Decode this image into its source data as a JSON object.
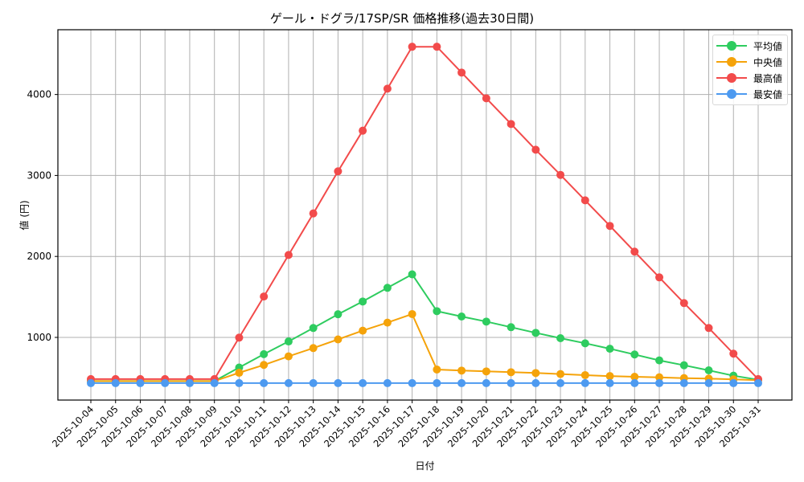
{
  "chart_data": {
    "type": "line",
    "title": "ゲール・ドグラ/17SP/SR 価格推移(過去30日間)",
    "xlabel": "日付",
    "ylabel": "値 (円)",
    "ylim": [
      226,
      4800
    ],
    "yticks": [
      1000,
      2000,
      3000,
      4000
    ],
    "grid": true,
    "legend_position": "upper right",
    "categories": [
      "2025-10-04",
      "2025-10-05",
      "2025-10-06",
      "2025-10-07",
      "2025-10-08",
      "2025-10-09",
      "2025-10-10",
      "2025-10-11",
      "2025-10-12",
      "2025-10-13",
      "2025-10-14",
      "2025-10-15",
      "2025-10-16",
      "2025-10-17",
      "2025-10-18",
      "2025-10-19",
      "2025-10-20",
      "2025-10-21",
      "2025-10-22",
      "2025-10-23",
      "2025-10-24",
      "2025-10-25",
      "2025-10-26",
      "2025-10-27",
      "2025-10-28",
      "2025-10-29",
      "2025-10-30",
      "2025-10-31"
    ],
    "series": [
      {
        "name": "平均値",
        "color": "#2ecc5f",
        "values": [
          460,
          460,
          460,
          460,
          460,
          460,
          628,
          793,
          950,
          1116,
          1286,
          1443,
          1612,
          1779,
          1324,
          1258,
          1195,
          1126,
          1056,
          990,
          927,
          860,
          789,
          716,
          656,
          593,
          527,
          477
        ]
      },
      {
        "name": "中央値",
        "color": "#f5a30a",
        "values": [
          460,
          460,
          460,
          460,
          460,
          460,
          563,
          660,
          766,
          868,
          975,
          1083,
          1182,
          1288,
          603,
          590,
          580,
          570,
          560,
          547,
          534,
          522,
          514,
          507,
          497,
          491,
          481,
          471
        ]
      },
      {
        "name": "最高値",
        "color": "#f24b4b",
        "values": [
          485,
          485,
          485,
          485,
          485,
          485,
          997,
          1505,
          2018,
          2531,
          3051,
          3553,
          4072,
          4590,
          4590,
          4271,
          3953,
          3636,
          3318,
          3007,
          2693,
          2377,
          2059,
          1741,
          1424,
          1116,
          799,
          485
        ]
      },
      {
        "name": "最安値",
        "color": "#4d9af0",
        "values": [
          435,
          435,
          435,
          435,
          435,
          435,
          435,
          435,
          435,
          435,
          435,
          435,
          435,
          435,
          435,
          435,
          435,
          435,
          435,
          435,
          435,
          435,
          435,
          435,
          435,
          435,
          435,
          435
        ]
      }
    ]
  }
}
